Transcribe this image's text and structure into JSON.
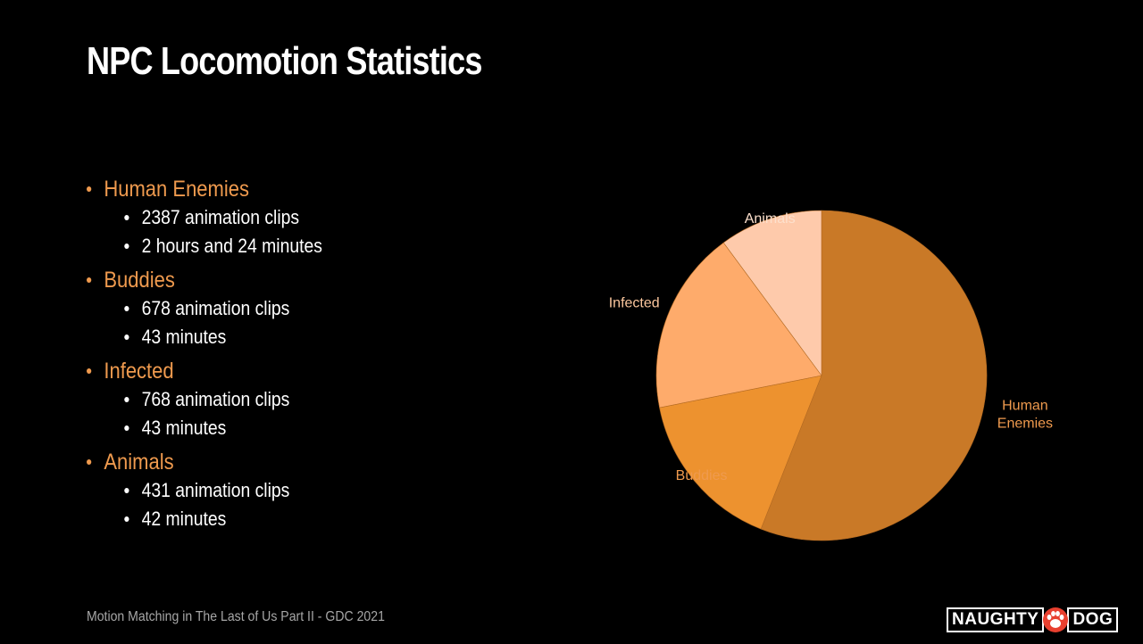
{
  "slide": {
    "title": "NPC Locomotion Statistics",
    "footer": "Motion Matching in The Last of Us Part II - GDC 2021",
    "logo": {
      "left_text": "NAUGHTY",
      "right_text": "DOG",
      "icon": "paw-icon"
    }
  },
  "bullets": [
    {
      "label": "Human Enemies",
      "items": [
        "2387 animation clips",
        "2 hours and 24 minutes"
      ]
    },
    {
      "label": "Buddies",
      "items": [
        "678 animation clips",
        "43 minutes"
      ]
    },
    {
      "label": "Infected",
      "items": [
        "768 animation clips",
        "43 minutes"
      ]
    },
    {
      "label": "Animals",
      "items": [
        "431 animation clips",
        "42 minutes"
      ]
    }
  ],
  "colors": {
    "background": "#000000",
    "accent": "#ef9a4e",
    "text": "#ffffff",
    "footer": "#a7a7a7"
  },
  "chart_data": {
    "type": "pie",
    "start_angle_deg": 0,
    "direction": "clockwise",
    "slices": [
      {
        "label": "Human Enemies",
        "label_lines": [
          "Human",
          "Enemies"
        ],
        "value": 2387,
        "color": "#c97927",
        "label_color": "#ef9a4e"
      },
      {
        "label": "Buddies",
        "label_lines": [
          "Buddies"
        ],
        "value": 678,
        "color": "#ed922f",
        "label_color": "#ef9a4e"
      },
      {
        "label": "Infected",
        "label_lines": [
          "Infected"
        ],
        "value": 768,
        "color": "#feab6b",
        "label_color": "#fcc79e"
      },
      {
        "label": "Animals",
        "label_lines": [
          "Animals"
        ],
        "value": 431,
        "color": "#fecaab",
        "label_color": "#fde0cc"
      }
    ]
  }
}
